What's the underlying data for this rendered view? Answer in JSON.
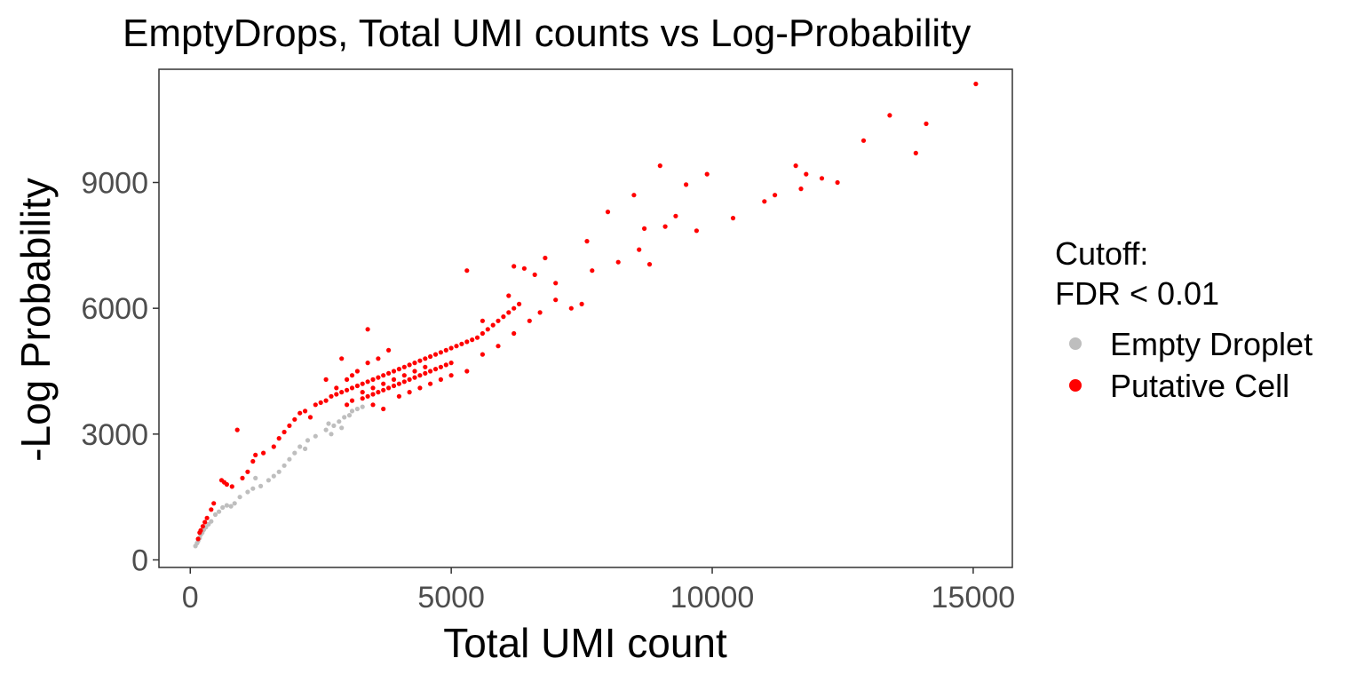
{
  "chart_data": {
    "type": "scatter",
    "title": "EmptyDrops, Total UMI counts vs Log-Probability",
    "xlabel": "Total UMI count",
    "ylabel": "-Log Probability",
    "xlim": [
      -600,
      15750
    ],
    "ylim": [
      -180,
      11700
    ],
    "x_ticks": [
      0,
      5000,
      10000,
      15000
    ],
    "y_ticks": [
      0,
      3000,
      6000,
      9000
    ],
    "x_tick_labels": [
      "0",
      "5000",
      "10000",
      "15000"
    ],
    "y_tick_labels": [
      "0",
      "3000",
      "6000",
      "9000"
    ],
    "grid": false,
    "legend": {
      "title_line1": "Cutoff:",
      "title_line2": "FDR < 0.01",
      "position": "right",
      "entries": [
        "Empty Droplet",
        "Putative Cell"
      ]
    },
    "colors": {
      "empty": "#bebebe",
      "putative": "#ff0000",
      "panel_border": "#333333",
      "tick_label": "#4d4d4d"
    },
    "series": [
      {
        "name": "Empty Droplet",
        "color": "#bebebe",
        "points": [
          [
            100,
            330
          ],
          [
            130,
            400
          ],
          [
            150,
            450
          ],
          [
            180,
            520
          ],
          [
            200,
            600
          ],
          [
            230,
            650
          ],
          [
            260,
            720
          ],
          [
            300,
            780
          ],
          [
            350,
            850
          ],
          [
            400,
            920
          ],
          [
            480,
            1080
          ],
          [
            550,
            1150
          ],
          [
            620,
            1250
          ],
          [
            700,
            1300
          ],
          [
            780,
            1280
          ],
          [
            850,
            1350
          ],
          [
            950,
            1500
          ],
          [
            1100,
            1620
          ],
          [
            1200,
            1700
          ],
          [
            1350,
            1760
          ],
          [
            1500,
            1900
          ],
          [
            1600,
            2000
          ],
          [
            1700,
            2100
          ],
          [
            1800,
            2250
          ],
          [
            1900,
            2400
          ],
          [
            2000,
            2550
          ],
          [
            2100,
            2700
          ],
          [
            2250,
            2850
          ],
          [
            2400,
            2950
          ],
          [
            2600,
            3100
          ],
          [
            2750,
            3200
          ],
          [
            2850,
            3300
          ],
          [
            2950,
            3400
          ],
          [
            3050,
            3450
          ],
          [
            3100,
            3550
          ],
          [
            3200,
            3600
          ],
          [
            3300,
            3650
          ],
          [
            2700,
            3000
          ],
          [
            2900,
            3150
          ],
          [
            2650,
            3250
          ],
          [
            2200,
            2650
          ],
          [
            1250,
            1950
          ]
        ]
      },
      {
        "name": "Putative Cell",
        "color": "#ff0000",
        "points": [
          [
            150,
            500
          ],
          [
            180,
            650
          ],
          [
            200,
            700
          ],
          [
            240,
            800
          ],
          [
            280,
            900
          ],
          [
            320,
            1000
          ],
          [
            400,
            1200
          ],
          [
            450,
            1350
          ],
          [
            600,
            1900
          ],
          [
            650,
            1850
          ],
          [
            700,
            1800
          ],
          [
            800,
            1750
          ],
          [
            900,
            3100
          ],
          [
            1000,
            1950
          ],
          [
            1100,
            2100
          ],
          [
            1200,
            2350
          ],
          [
            1250,
            2500
          ],
          [
            1400,
            2550
          ],
          [
            1600,
            2700
          ],
          [
            1700,
            2900
          ],
          [
            1800,
            3050
          ],
          [
            1900,
            3200
          ],
          [
            2000,
            3350
          ],
          [
            2100,
            3500
          ],
          [
            2200,
            3550
          ],
          [
            2300,
            3400
          ],
          [
            2400,
            3700
          ],
          [
            2500,
            3750
          ],
          [
            2600,
            3800
          ],
          [
            2700,
            3900
          ],
          [
            2800,
            3950
          ],
          [
            2900,
            4000
          ],
          [
            3000,
            4050
          ],
          [
            3100,
            4100
          ],
          [
            3200,
            4150
          ],
          [
            3300,
            4200
          ],
          [
            3400,
            4250
          ],
          [
            3500,
            4300
          ],
          [
            3600,
            4350
          ],
          [
            3700,
            4400
          ],
          [
            3800,
            4450
          ],
          [
            3900,
            4500
          ],
          [
            4000,
            4550
          ],
          [
            4100,
            4600
          ],
          [
            4200,
            4650
          ],
          [
            4300,
            4700
          ],
          [
            4400,
            4750
          ],
          [
            4500,
            4800
          ],
          [
            4600,
            4850
          ],
          [
            4700,
            4900
          ],
          [
            4800,
            4950
          ],
          [
            4900,
            5000
          ],
          [
            5000,
            5050
          ],
          [
            5100,
            5100
          ],
          [
            5200,
            5150
          ],
          [
            5300,
            5200
          ],
          [
            5400,
            5250
          ],
          [
            5500,
            5300
          ],
          [
            5600,
            5400
          ],
          [
            5700,
            5500
          ],
          [
            5800,
            5600
          ],
          [
            5900,
            5700
          ],
          [
            6000,
            5800
          ],
          [
            6100,
            5900
          ],
          [
            6200,
            6000
          ],
          [
            6300,
            6100
          ],
          [
            3000,
            3700
          ],
          [
            3100,
            3800
          ],
          [
            3300,
            3850
          ],
          [
            3400,
            3900
          ],
          [
            3500,
            3950
          ],
          [
            3600,
            4000
          ],
          [
            3700,
            4050
          ],
          [
            3800,
            4100
          ],
          [
            3900,
            4150
          ],
          [
            4000,
            4200
          ],
          [
            4100,
            4250
          ],
          [
            4200,
            4300
          ],
          [
            4300,
            4350
          ],
          [
            4400,
            4400
          ],
          [
            4500,
            4450
          ],
          [
            4600,
            4500
          ],
          [
            4700,
            4550
          ],
          [
            4800,
            4600
          ],
          [
            4900,
            4650
          ],
          [
            5000,
            4700
          ],
          [
            3200,
            4500
          ],
          [
            3400,
            4700
          ],
          [
            3600,
            4800
          ],
          [
            3800,
            5000
          ],
          [
            3400,
            5500
          ],
          [
            2900,
            4800
          ],
          [
            3100,
            4400
          ],
          [
            3500,
            3700
          ],
          [
            3700,
            3600
          ],
          [
            4000,
            3900
          ],
          [
            4200,
            4000
          ],
          [
            4400,
            4100
          ],
          [
            4600,
            4200
          ],
          [
            4800,
            4300
          ],
          [
            5000,
            4400
          ],
          [
            5300,
            4500
          ],
          [
            5600,
            4900
          ],
          [
            5900,
            5100
          ],
          [
            6200,
            5400
          ],
          [
            5300,
            6900
          ],
          [
            5600,
            5700
          ],
          [
            6100,
            6300
          ],
          [
            6200,
            7000
          ],
          [
            6400,
            6950
          ],
          [
            6600,
            6800
          ],
          [
            6800,
            7200
          ],
          [
            7000,
            6600
          ],
          [
            7300,
            6000
          ],
          [
            7500,
            6100
          ],
          [
            7600,
            7600
          ],
          [
            7700,
            6900
          ],
          [
            8000,
            8300
          ],
          [
            8200,
            7100
          ],
          [
            8500,
            8700
          ],
          [
            8600,
            7400
          ],
          [
            8700,
            7900
          ],
          [
            8800,
            7050
          ],
          [
            9000,
            9400
          ],
          [
            9100,
            7950
          ],
          [
            9300,
            8200
          ],
          [
            9500,
            8950
          ],
          [
            9700,
            7850
          ],
          [
            9900,
            9200
          ],
          [
            10400,
            8150
          ],
          [
            11000,
            8550
          ],
          [
            11200,
            8700
          ],
          [
            11600,
            9400
          ],
          [
            11700,
            8850
          ],
          [
            11800,
            9200
          ],
          [
            12100,
            9100
          ],
          [
            12400,
            9000
          ],
          [
            12900,
            10000
          ],
          [
            13400,
            10600
          ],
          [
            13900,
            9700
          ],
          [
            14100,
            10400
          ],
          [
            15050,
            11350
          ],
          [
            6700,
            5900
          ],
          [
            7000,
            6200
          ],
          [
            6500,
            5700
          ],
          [
            3300,
            4000
          ],
          [
            3500,
            4100
          ],
          [
            3700,
            4200
          ],
          [
            3900,
            4300
          ],
          [
            4100,
            4400
          ],
          [
            4300,
            4500
          ],
          [
            4500,
            4600
          ],
          [
            2600,
            4300
          ],
          [
            2800,
            4100
          ],
          [
            3000,
            4300
          ]
        ]
      }
    ]
  }
}
